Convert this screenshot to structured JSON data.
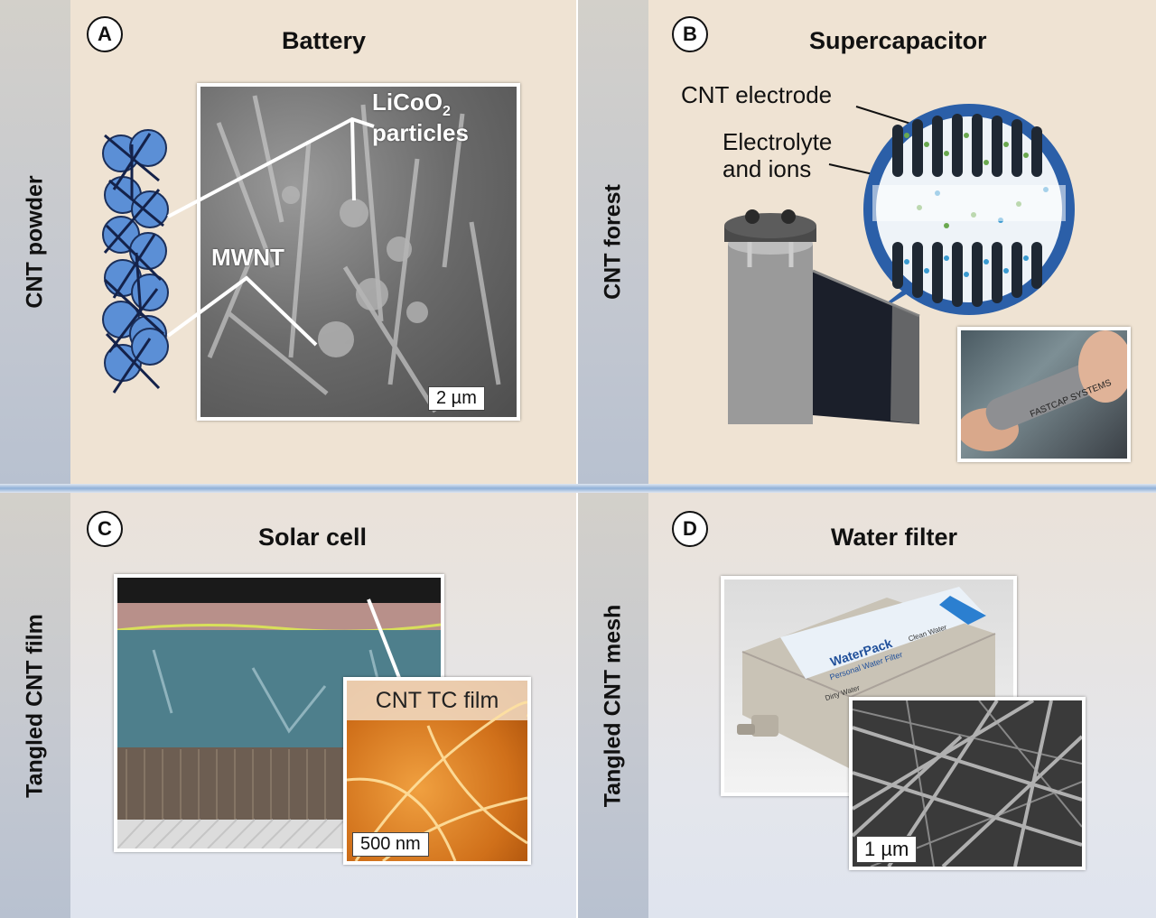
{
  "sidebars": {
    "top_left": "CNT powder",
    "top_right": "CNT forest",
    "bottom_left": "Tangled CNT film",
    "bottom_right": "Tangled CNT mesh"
  },
  "panels": {
    "a": {
      "badge": "A",
      "title": "Battery",
      "label_licoo2": "LiCoO",
      "label_sub": "2",
      "label_particles": "particles",
      "label_mwnt": "MWNT",
      "scale": "2 µm"
    },
    "b": {
      "badge": "B",
      "title": "Supercapacitor",
      "label_electrode": "CNT electrode",
      "label_electrolyte": "Electrolyte",
      "label_ions": "and ions",
      "photo_text": "FASTCAP SYSTEMS"
    },
    "c": {
      "badge": "C",
      "title": "Solar cell",
      "inset_title": "CNT TC film",
      "scale": "500 nm"
    },
    "d": {
      "badge": "D",
      "title": "Water filter",
      "device_brand": "WaterPack",
      "device_sub": "Personal Water Filter",
      "device_dirty": "Dirty Water",
      "device_clean": "Clean Water",
      "scale": "1 µm"
    }
  },
  "colors": {
    "panel_bg": "#efe3d3",
    "particle_blue": "#5b8fd6",
    "circle_ring": "#2b5fa8",
    "inset_orange": "#e08a2c"
  }
}
